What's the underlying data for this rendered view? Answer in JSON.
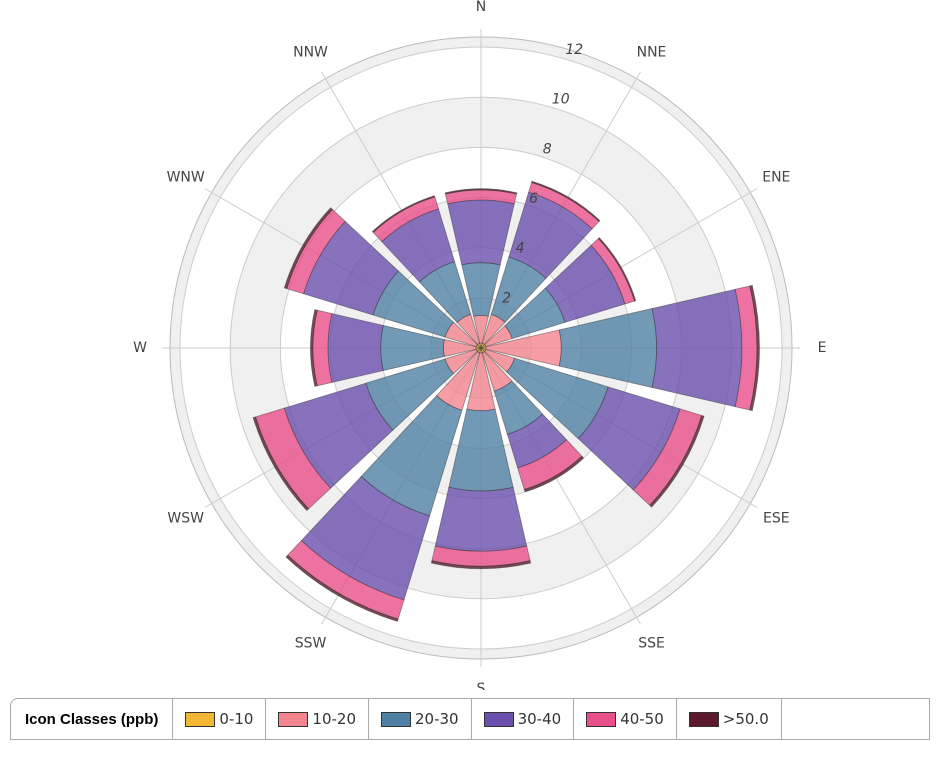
{
  "chart_data": {
    "type": "windrose",
    "direction_labels": [
      "N",
      "NNE",
      "ENE",
      "E",
      "ESE",
      "SSE",
      "S",
      "SSW",
      "WSW",
      "W",
      "WNW",
      "NNW"
    ],
    "axis_labels": [
      "N",
      "NNE",
      "ENE",
      "E",
      "ESE",
      "SSE",
      "S",
      "SSW",
      "WSW",
      "W",
      "WNW",
      "NNW"
    ],
    "ylim": [
      0,
      12.4
    ],
    "yticks": [
      2,
      4,
      6,
      8,
      10,
      12
    ],
    "legend_title": "Icon Classes (ppb)",
    "series": [
      {
        "name": "0-10",
        "color": "#f2b534",
        "values": [
          0.2,
          0.2,
          0.2,
          0.2,
          0.2,
          0.2,
          0.2,
          0.2,
          0.2,
          0.2,
          0.2,
          0.2
        ]
      },
      {
        "name": "10-20",
        "color": "#f4858e",
        "values": [
          1.1,
          1.2,
          1.1,
          3.0,
          1.2,
          1.6,
          2.3,
          2.4,
          1.3,
          1.3,
          1.3,
          1.2
        ]
      },
      {
        "name": "20-30",
        "color": "#4f7fa3",
        "values": [
          2.1,
          2.4,
          2.2,
          3.8,
          3.9,
          1.8,
          3.2,
          4.4,
          3.3,
          2.5,
          3.0,
          2.2
        ]
      },
      {
        "name": "30-40",
        "color": "#6b4fad",
        "values": [
          2.5,
          2.7,
          2.5,
          3.4,
          3.0,
          1.4,
          2.4,
          3.5,
          3.4,
          2.1,
          2.9,
          2.2
        ]
      },
      {
        "name": "40-50",
        "color": "#e94f8a",
        "values": [
          0.4,
          0.4,
          0.4,
          0.6,
          0.9,
          0.9,
          0.6,
          0.8,
          1.2,
          0.6,
          0.7,
          0.5
        ]
      },
      {
        "name": ">50.0",
        "color": "#5a1a2a",
        "values": [
          0.05,
          0.05,
          0.05,
          0.1,
          0.1,
          0.1,
          0.1,
          0.1,
          0.1,
          0.1,
          0.1,
          0.05
        ]
      }
    ]
  }
}
